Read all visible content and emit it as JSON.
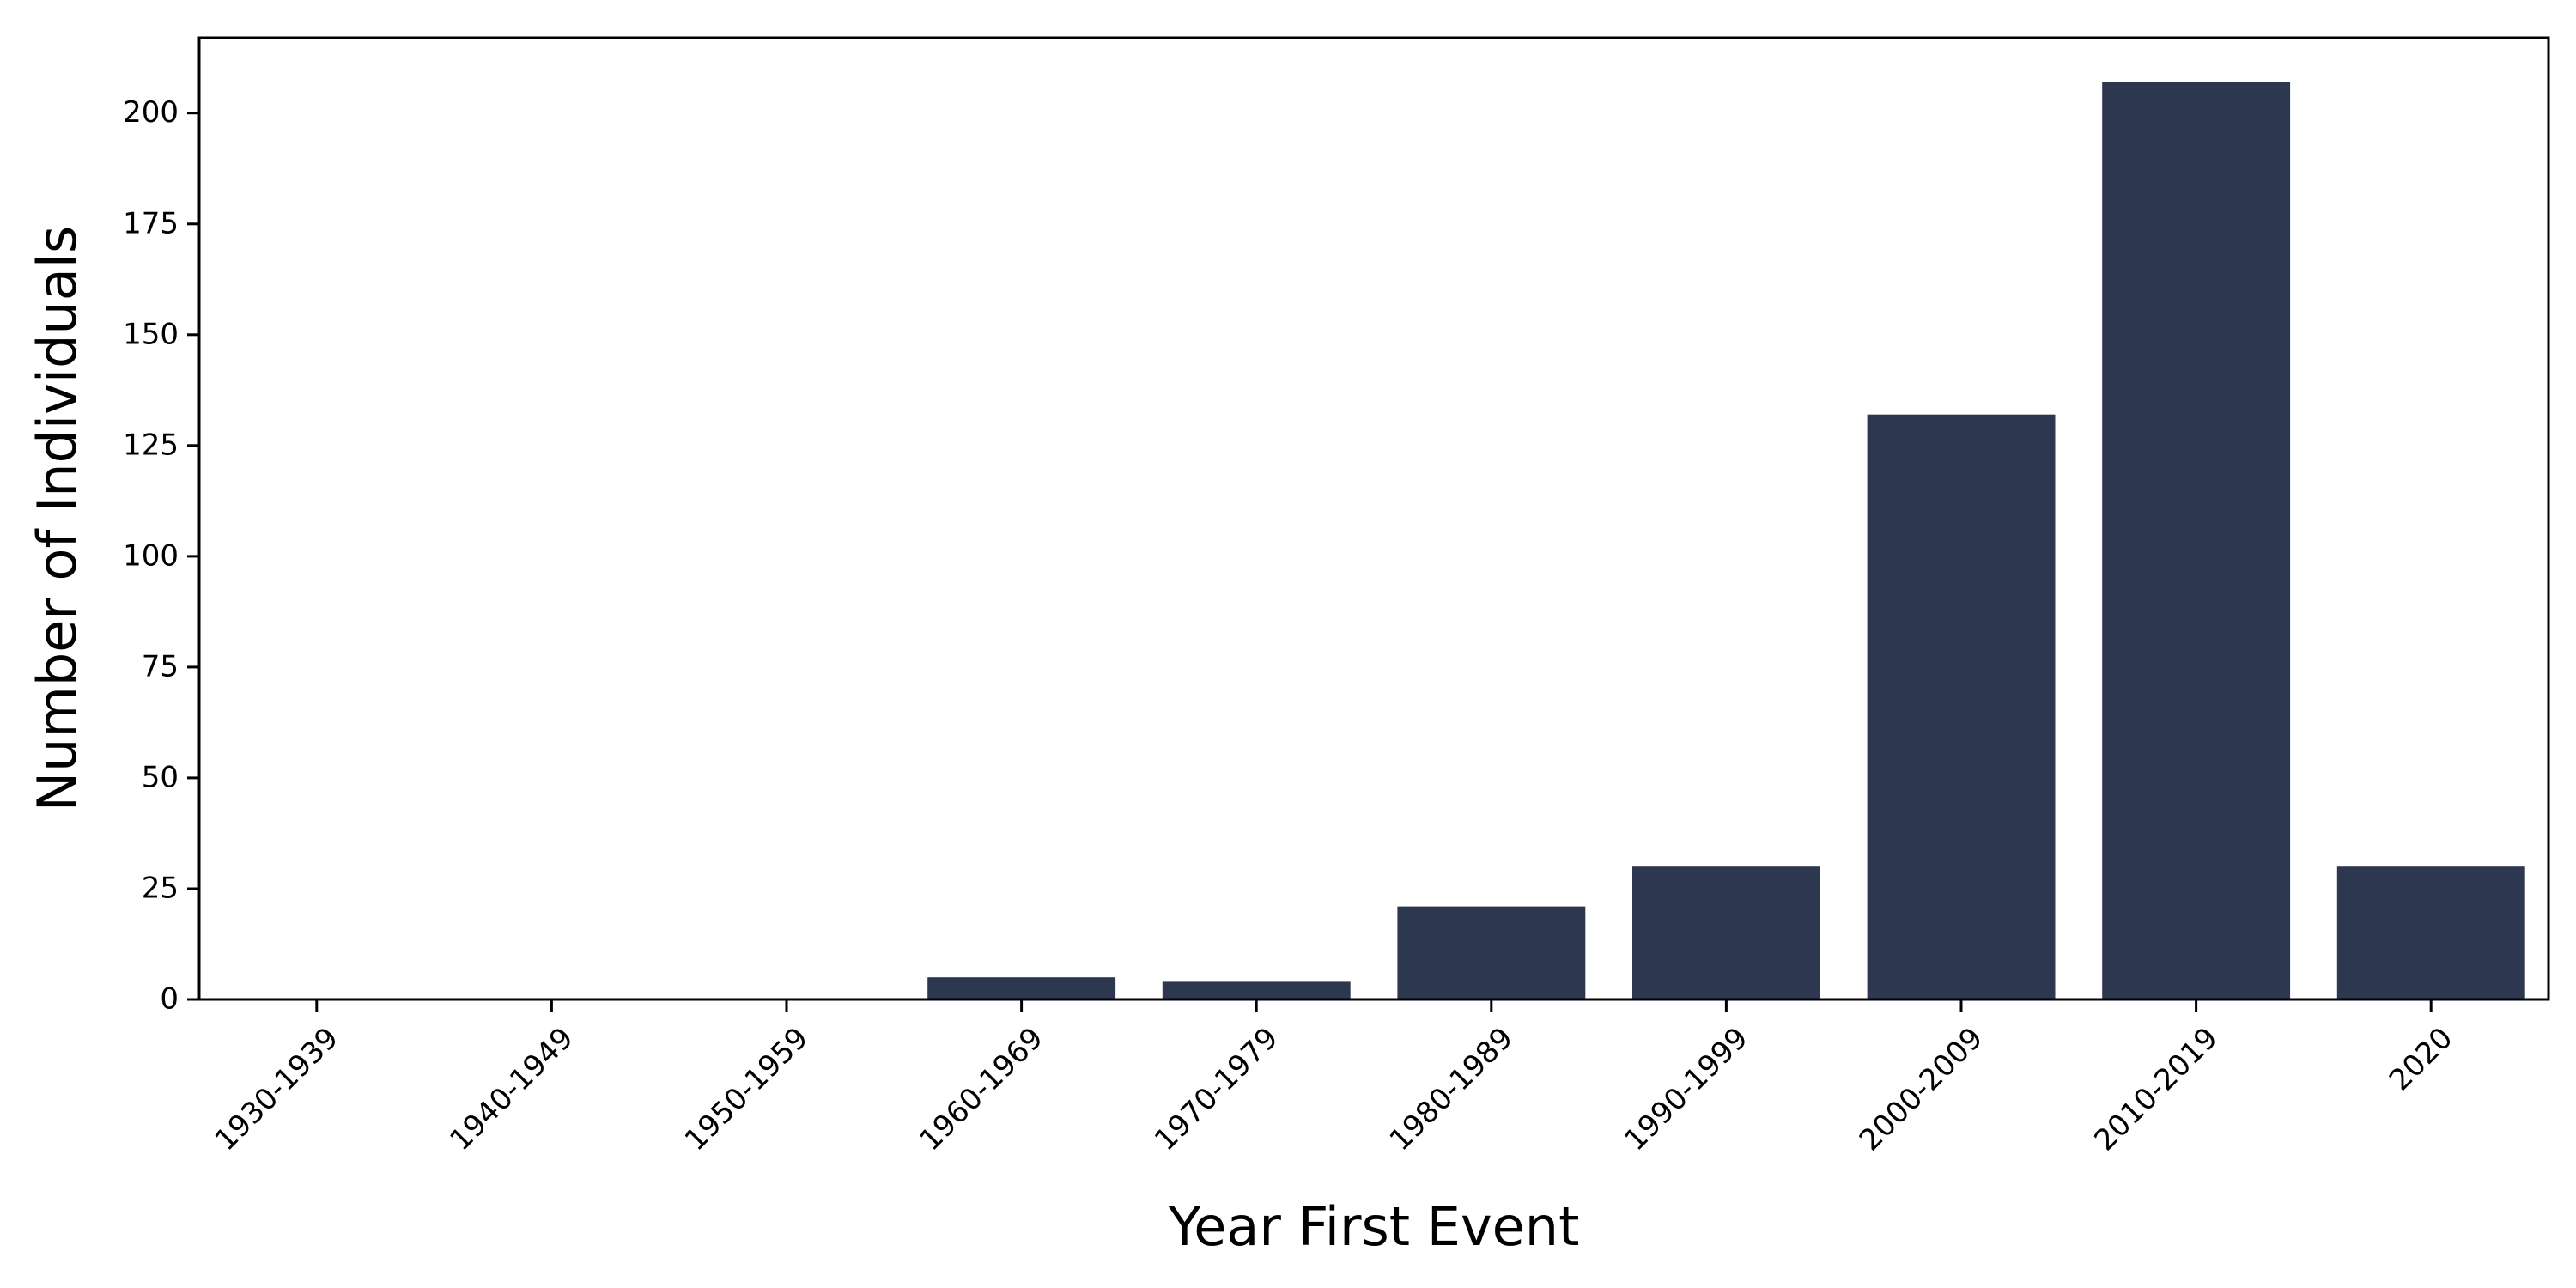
{
  "chart_data": {
    "type": "bar",
    "title": "",
    "xlabel": "Year First Event",
    "ylabel": "Number of Individuals",
    "categories": [
      "1930-1939",
      "1940-1949",
      "1950-1959",
      "1960-1969",
      "1970-1979",
      "1980-1989",
      "1990-1999",
      "2000-2009",
      "2010-2019",
      "2020"
    ],
    "values": [
      0,
      0,
      0,
      5,
      4,
      21,
      30,
      132,
      207,
      30
    ],
    "yticks": [
      0,
      25,
      50,
      75,
      100,
      125,
      150,
      175,
      200
    ],
    "ylim": [
      0,
      217
    ],
    "bar_color": "#2d3850",
    "grid": false,
    "legend": false
  }
}
